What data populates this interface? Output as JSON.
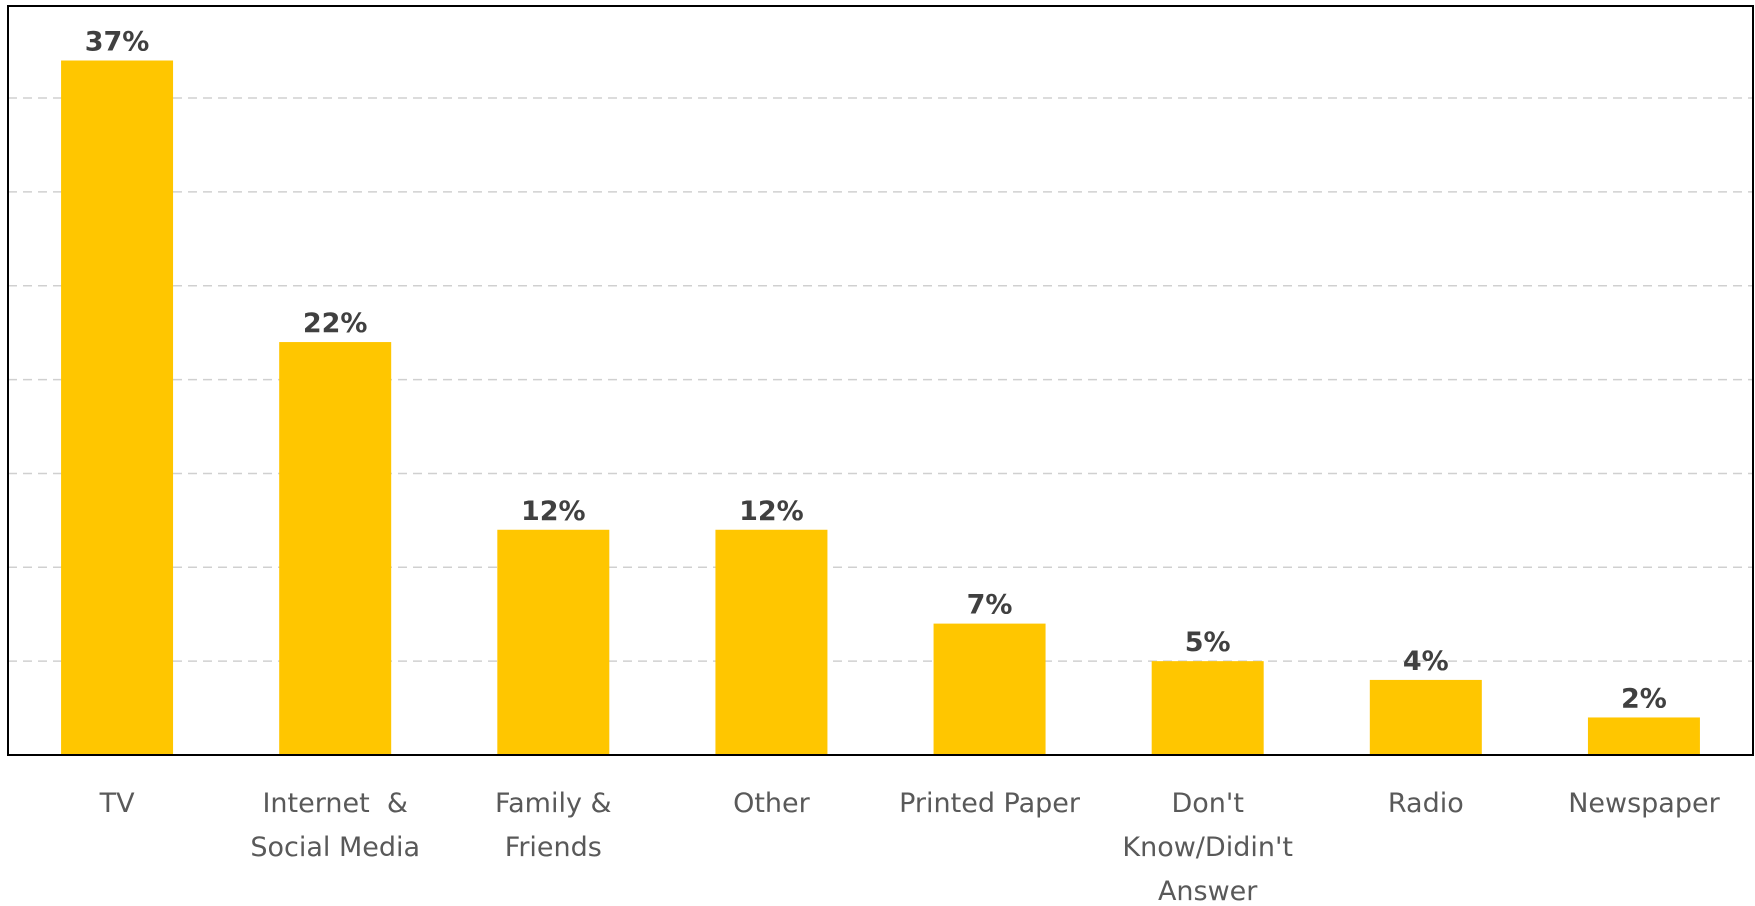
{
  "chart_data": {
    "type": "bar",
    "categories": [
      [
        "TV"
      ],
      [
        "Internet  &",
        "Social Media"
      ],
      [
        "Family &",
        "Friends"
      ],
      [
        "Other"
      ],
      [
        "Printed Paper"
      ],
      [
        "Don't",
        "Know/Didin't",
        "Answer"
      ],
      [
        "Radio"
      ],
      [
        "Newspaper"
      ]
    ],
    "values": [
      37,
      22,
      12,
      12,
      7,
      5,
      4,
      2
    ],
    "labels": [
      "37%",
      "22%",
      "12%",
      "12%",
      "7%",
      "5%",
      "4%",
      "2%"
    ],
    "value_suffix": "%",
    "ylim": [
      0,
      40
    ],
    "gridlines": [
      5,
      10,
      15,
      20,
      25,
      30,
      35
    ],
    "grid": true,
    "legend": "none",
    "bar_color": "#FFC600",
    "title": "",
    "xlabel": "",
    "ylabel": ""
  }
}
